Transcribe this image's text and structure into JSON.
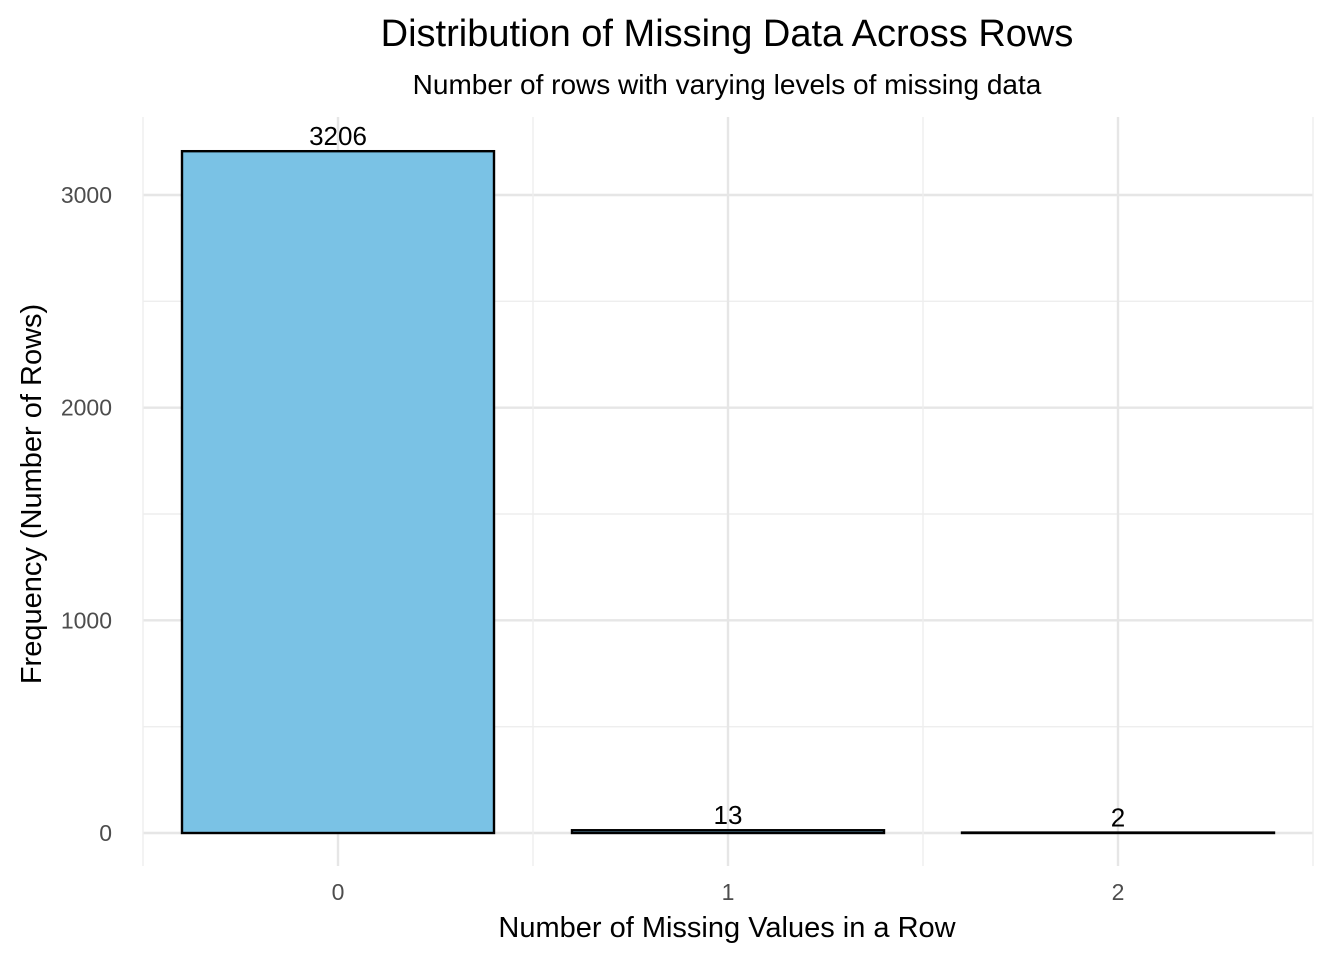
{
  "chart_data": {
    "type": "bar",
    "title": "Distribution of Missing Data Across Rows",
    "subtitle": "Number of rows with varying levels of missing data",
    "xlabel": "Number of Missing Values in a Row",
    "ylabel": "Frequency (Number of Rows)",
    "categories": [
      "0",
      "1",
      "2"
    ],
    "values": [
      3206,
      13,
      2
    ],
    "data_labels": [
      "3206",
      "13",
      "2"
    ],
    "y_ticks": [
      0,
      1000,
      2000,
      3000
    ],
    "y_tick_labels": [
      "0",
      "1000",
      "2000",
      "3000"
    ],
    "y_minor_ticks": [
      500,
      1500,
      2500
    ],
    "ylim": [
      0,
      3366
    ],
    "grid": true,
    "legend": "none",
    "bar_fill": "#7AC2E5",
    "bar_outline": "#000000"
  }
}
